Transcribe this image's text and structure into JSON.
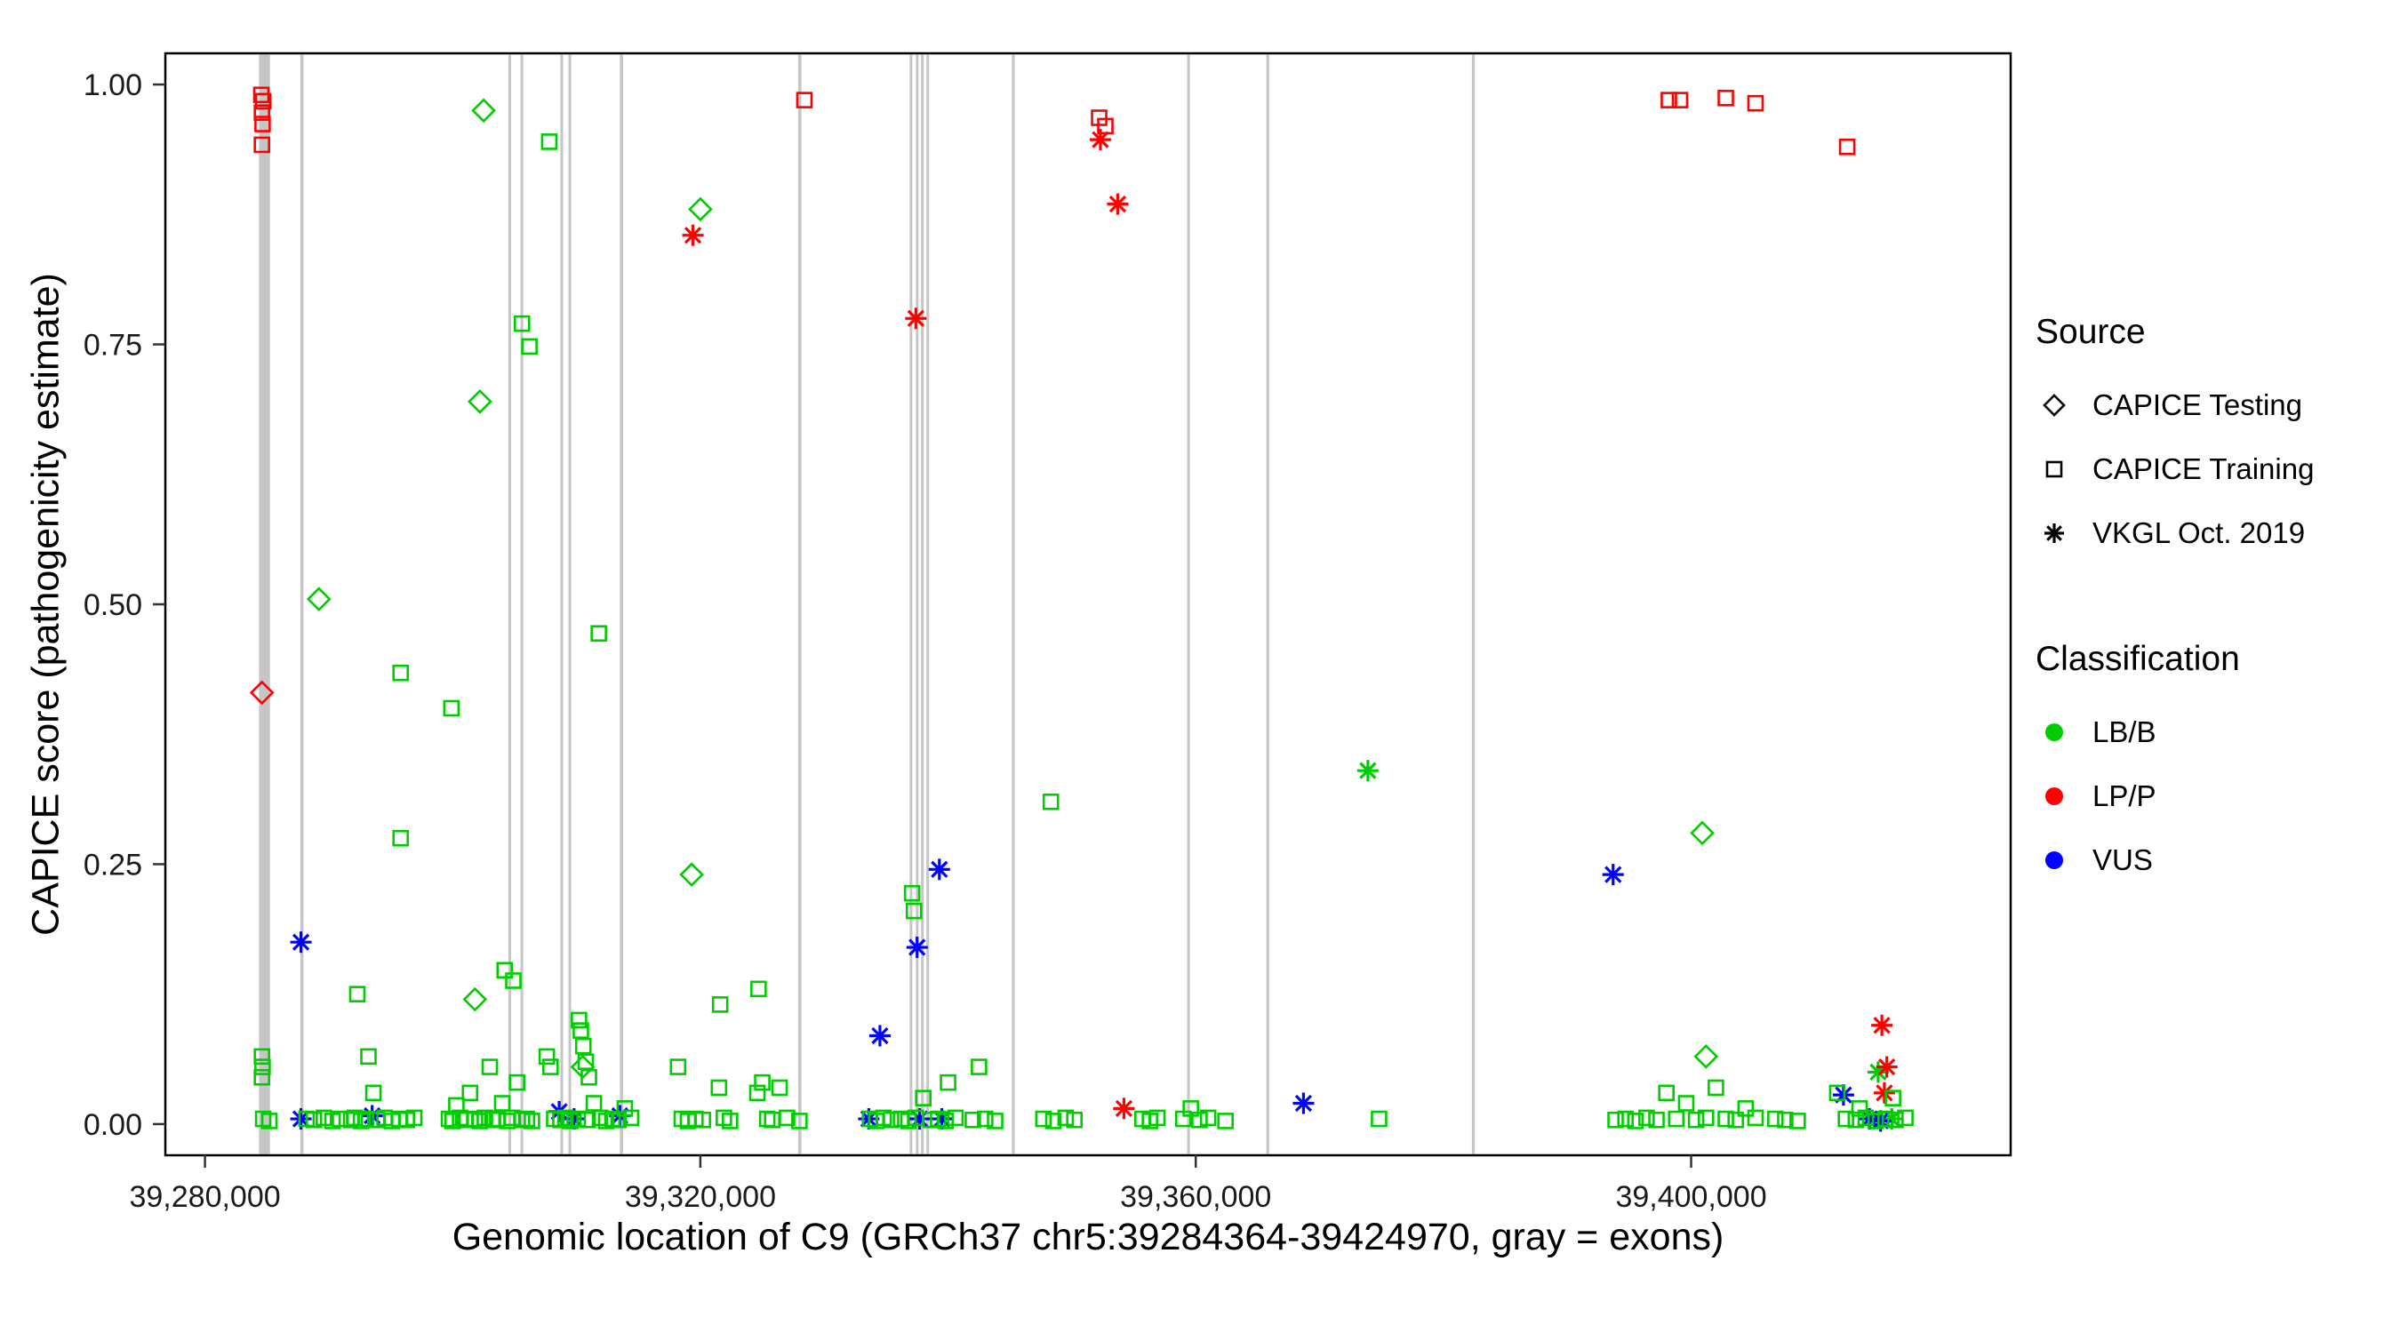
{
  "legend": {
    "source": {
      "title": "Source",
      "items": [
        {
          "label": "CAPICE Testing",
          "glyph": "diamond"
        },
        {
          "label": "CAPICE Training",
          "glyph": "square"
        },
        {
          "label": "VKGL Oct. 2019",
          "glyph": "asterisk"
        }
      ]
    },
    "classification": {
      "title": "Classification",
      "items": [
        {
          "label": "LB/B",
          "color_key": "LB/B"
        },
        {
          "label": "LP/P",
          "color_key": "LP/P"
        },
        {
          "label": "VUS",
          "color_key": "VUS"
        }
      ]
    }
  },
  "chart_data": {
    "type": "scatter",
    "title": "",
    "xlabel": "Genomic location of C9 (GRCh37 chr5:39284364-39424970, gray = exons)",
    "ylabel": "CAPICE score (pathogenicity estimate)",
    "xlim": [
      39276800,
      39425800
    ],
    "ylim": [
      -0.03,
      1.03
    ],
    "grid": false,
    "legend_position": "right",
    "x_ticks": [
      {
        "value": 39280000,
        "label": "39,280,000"
      },
      {
        "value": 39320000,
        "label": "39,320,000"
      },
      {
        "value": 39360000,
        "label": "39,360,000"
      },
      {
        "value": 39400000,
        "label": "39,400,000"
      }
    ],
    "y_ticks": [
      {
        "value": 0.0,
        "label": "0.00"
      },
      {
        "value": 0.25,
        "label": "0.25"
      },
      {
        "value": 0.5,
        "label": "0.50"
      },
      {
        "value": 0.75,
        "label": "0.75"
      },
      {
        "value": 1.0,
        "label": "1.00"
      }
    ],
    "colors": {
      "LB/B": "#00CD00",
      "LP/P": "#FF0000",
      "VUS": "#0000FF"
    },
    "shapes": {
      "CAPICE Testing": "diamond",
      "CAPICE Training": "square",
      "VKGL Oct. 2019": "asterisk"
    },
    "exon_color": "#C6C6C6",
    "exons": [
      [
        39284364,
        39285250
      ],
      [
        39287700,
        39287950
      ],
      [
        39304500,
        39304720
      ],
      [
        39305480,
        39305700
      ],
      [
        39308700,
        39308920
      ],
      [
        39309350,
        39309570
      ],
      [
        39313500,
        39313760
      ],
      [
        39327900,
        39328160
      ],
      [
        39336900,
        39337120
      ],
      [
        39337400,
        39337620
      ],
      [
        39337820,
        39338040
      ],
      [
        39338250,
        39338470
      ],
      [
        39345150,
        39345380
      ],
      [
        39359300,
        39359530
      ],
      [
        39365700,
        39365930
      ],
      [
        39382300,
        39382530
      ]
    ],
    "series": [
      {
        "source": "CAPICE Testing",
        "classification": "LB/B",
        "points": [
          [
            39289200,
            0.505
          ],
          [
            39301800,
            0.12
          ],
          [
            39302200,
            0.695
          ],
          [
            39302500,
            0.975
          ],
          [
            39310500,
            0.055
          ],
          [
            39319300,
            0.24
          ],
          [
            39320000,
            0.88
          ],
          [
            39400900,
            0.28
          ],
          [
            39401200,
            0.065
          ]
        ]
      },
      {
        "source": "CAPICE Testing",
        "classification": "LP/P",
        "points": [
          [
            39284600,
            0.415
          ]
        ]
      },
      {
        "source": "CAPICE Training",
        "classification": "LP/P",
        "points": [
          [
            39284550,
            0.99
          ],
          [
            39284700,
            0.984
          ],
          [
            39284600,
            0.973
          ],
          [
            39284650,
            0.962
          ],
          [
            39284600,
            0.942
          ],
          [
            39328400,
            0.985
          ],
          [
            39352200,
            0.968
          ],
          [
            39352700,
            0.96
          ],
          [
            39398200,
            0.985
          ],
          [
            39399100,
            0.985
          ],
          [
            39402800,
            0.987
          ],
          [
            39405200,
            0.982
          ],
          [
            39412600,
            0.94
          ]
        ]
      },
      {
        "source": "VKGL Oct. 2019",
        "classification": "LB/B",
        "points": [
          [
            39373900,
            0.34
          ],
          [
            39415100,
            0.05
          ],
          [
            39416200,
            0.005
          ]
        ]
      },
      {
        "source": "VKGL Oct. 2019",
        "classification": "LP/P",
        "points": [
          [
            39319400,
            0.855
          ],
          [
            39337400,
            0.775
          ],
          [
            39352300,
            0.947
          ],
          [
            39353700,
            0.885
          ],
          [
            39354200,
            0.015
          ],
          [
            39415400,
            0.095
          ],
          [
            39415800,
            0.055
          ],
          [
            39415600,
            0.03
          ]
        ]
      },
      {
        "source": "VKGL Oct. 2019",
        "classification": "VUS",
        "points": [
          [
            39287750,
            0.175
          ],
          [
            39287750,
            0.005
          ],
          [
            39293500,
            0.008
          ],
          [
            39308600,
            0.012
          ],
          [
            39309800,
            0.005
          ],
          [
            39313500,
            0.008
          ],
          [
            39334500,
            0.085
          ],
          [
            39333600,
            0.005
          ],
          [
            39337500,
            0.17
          ],
          [
            39337700,
            0.005
          ],
          [
            39339300,
            0.245
          ],
          [
            39339500,
            0.005
          ],
          [
            39368700,
            0.02
          ],
          [
            39393700,
            0.24
          ],
          [
            39412300,
            0.028
          ],
          [
            39414400,
            0.005
          ],
          [
            39415300,
            0.003
          ]
        ]
      },
      {
        "source": "CAPICE Training",
        "classification": "LB/B",
        "points": [
          [
            39292300,
            0.125
          ],
          [
            39293200,
            0.065
          ],
          [
            39295800,
            0.434
          ],
          [
            39295800,
            0.275
          ],
          [
            39299900,
            0.4
          ],
          [
            39304200,
            0.148
          ],
          [
            39304900,
            0.138
          ],
          [
            39305600,
            0.77
          ],
          [
            39306200,
            0.748
          ],
          [
            39307800,
            0.945
          ],
          [
            39311800,
            0.472
          ],
          [
            39321600,
            0.115
          ],
          [
            39324700,
            0.13
          ],
          [
            39337100,
            0.222
          ],
          [
            39337250,
            0.205
          ],
          [
            39348300,
            0.31
          ],
          [
            39342500,
            0.055
          ],
          [
            39318200,
            0.055
          ],
          [
            39307600,
            0.065
          ],
          [
            39307900,
            0.055
          ],
          [
            39310200,
            0.1
          ],
          [
            39310350,
            0.09
          ],
          [
            39310550,
            0.075
          ],
          [
            39310750,
            0.06
          ],
          [
            39311000,
            0.045
          ],
          [
            39303000,
            0.055
          ],
          [
            39305200,
            0.04
          ],
          [
            39301400,
            0.03
          ],
          [
            39304000,
            0.02
          ],
          [
            39300300,
            0.018
          ],
          [
            39284600,
            0.065
          ],
          [
            39284650,
            0.055
          ],
          [
            39284600,
            0.045
          ],
          [
            39321500,
            0.035
          ],
          [
            39325000,
            0.04
          ],
          [
            39324600,
            0.03
          ],
          [
            39326400,
            0.035
          ],
          [
            39338000,
            0.025
          ],
          [
            39340000,
            0.04
          ],
          [
            39359600,
            0.015
          ],
          [
            39311400,
            0.02
          ],
          [
            39313900,
            0.015
          ],
          [
            39293600,
            0.03
          ],
          [
            39398000,
            0.03
          ],
          [
            39399600,
            0.02
          ],
          [
            39402000,
            0.035
          ],
          [
            39404400,
            0.015
          ],
          [
            39411800,
            0.03
          ],
          [
            39416300,
            0.025
          ],
          [
            39413600,
            0.015
          ],
          [
            39284700,
            0.005
          ],
          [
            39285200,
            0.003
          ],
          [
            39288200,
            0.005
          ],
          [
            39288800,
            0.004
          ],
          [
            39289600,
            0.006
          ],
          [
            39290300,
            0.003
          ],
          [
            39290900,
            0.005
          ],
          [
            39291800,
            0.004
          ],
          [
            39292100,
            0.006
          ],
          [
            39292600,
            0.003
          ],
          [
            39293000,
            0.005
          ],
          [
            39293900,
            0.004
          ],
          [
            39294500,
            0.006
          ],
          [
            39295100,
            0.003
          ],
          [
            39295700,
            0.005
          ],
          [
            39296300,
            0.004
          ],
          [
            39296900,
            0.006
          ],
          [
            39299700,
            0.005
          ],
          [
            39300000,
            0.003
          ],
          [
            39300600,
            0.006
          ],
          [
            39301000,
            0.004
          ],
          [
            39301800,
            0.005
          ],
          [
            39302200,
            0.003
          ],
          [
            39302600,
            0.006
          ],
          [
            39303200,
            0.004
          ],
          [
            39303600,
            0.005
          ],
          [
            39304400,
            0.003
          ],
          [
            39304800,
            0.006
          ],
          [
            39305600,
            0.004
          ],
          [
            39306000,
            0.005
          ],
          [
            39306400,
            0.003
          ],
          [
            39308200,
            0.005
          ],
          [
            39308700,
            0.004
          ],
          [
            39309100,
            0.006
          ],
          [
            39309500,
            0.003
          ],
          [
            39310100,
            0.005
          ],
          [
            39310900,
            0.004
          ],
          [
            39311900,
            0.006
          ],
          [
            39312400,
            0.003
          ],
          [
            39312900,
            0.005
          ],
          [
            39313400,
            0.004
          ],
          [
            39314400,
            0.006
          ],
          [
            39318500,
            0.005
          ],
          [
            39319000,
            0.003
          ],
          [
            39319600,
            0.005
          ],
          [
            39320200,
            0.004
          ],
          [
            39321900,
            0.006
          ],
          [
            39322400,
            0.003
          ],
          [
            39325400,
            0.005
          ],
          [
            39325800,
            0.004
          ],
          [
            39327000,
            0.006
          ],
          [
            39328000,
            0.003
          ],
          [
            39333700,
            0.005
          ],
          [
            39334200,
            0.003
          ],
          [
            39334800,
            0.006
          ],
          [
            39335400,
            0.004
          ],
          [
            39336200,
            0.005
          ],
          [
            39336800,
            0.003
          ],
          [
            39337400,
            0.006
          ],
          [
            39338600,
            0.004
          ],
          [
            39339200,
            0.005
          ],
          [
            39339800,
            0.003
          ],
          [
            39340600,
            0.006
          ],
          [
            39342000,
            0.004
          ],
          [
            39343000,
            0.005
          ],
          [
            39343800,
            0.003
          ],
          [
            39347700,
            0.005
          ],
          [
            39348500,
            0.003
          ],
          [
            39349500,
            0.006
          ],
          [
            39350200,
            0.004
          ],
          [
            39355700,
            0.005
          ],
          [
            39356300,
            0.003
          ],
          [
            39356900,
            0.006
          ],
          [
            39359000,
            0.005
          ],
          [
            39360300,
            0.004
          ],
          [
            39361000,
            0.006
          ],
          [
            39362400,
            0.003
          ],
          [
            39374800,
            0.005
          ],
          [
            39393900,
            0.004
          ],
          [
            39394700,
            0.005
          ],
          [
            39395500,
            0.003
          ],
          [
            39396400,
            0.006
          ],
          [
            39397200,
            0.004
          ],
          [
            39398800,
            0.005
          ],
          [
            39400400,
            0.004
          ],
          [
            39401200,
            0.006
          ],
          [
            39402800,
            0.005
          ],
          [
            39403600,
            0.004
          ],
          [
            39405200,
            0.006
          ],
          [
            39406800,
            0.005
          ],
          [
            39407600,
            0.004
          ],
          [
            39408600,
            0.003
          ],
          [
            39412500,
            0.005
          ],
          [
            39413300,
            0.004
          ],
          [
            39414100,
            0.006
          ],
          [
            39414900,
            0.003
          ],
          [
            39415700,
            0.005
          ],
          [
            39416500,
            0.004
          ],
          [
            39417300,
            0.006
          ]
        ]
      }
    ]
  }
}
